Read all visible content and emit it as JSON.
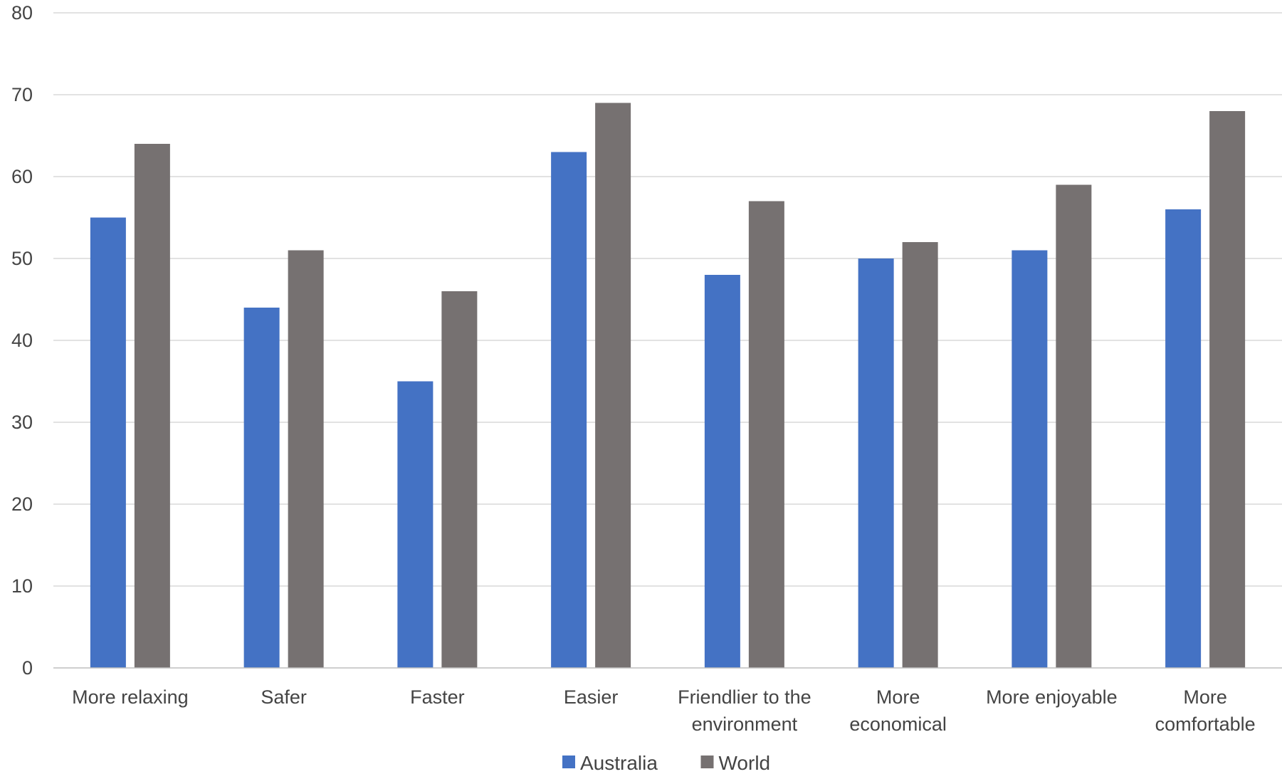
{
  "chart_data": {
    "type": "bar",
    "categories": [
      [
        "More relaxing"
      ],
      [
        "Safer"
      ],
      [
        "Faster"
      ],
      [
        "Easier"
      ],
      [
        "Friendlier to the",
        "environment"
      ],
      [
        "More",
        "economical"
      ],
      [
        "More enjoyable"
      ],
      [
        "More",
        "comfortable"
      ]
    ],
    "series": [
      {
        "name": "Australia",
        "color": "#4472c4",
        "values": [
          55,
          44,
          35,
          63,
          48,
          50,
          51,
          56
        ]
      },
      {
        "name": "World",
        "color": "#767171",
        "values": [
          64,
          51,
          46,
          69,
          57,
          52,
          59,
          68
        ]
      }
    ],
    "ylim": [
      0,
      80
    ],
    "yticks": [
      0,
      10,
      20,
      30,
      40,
      50,
      60,
      70,
      80
    ],
    "grid": true,
    "legend_position": "bottom-center"
  }
}
